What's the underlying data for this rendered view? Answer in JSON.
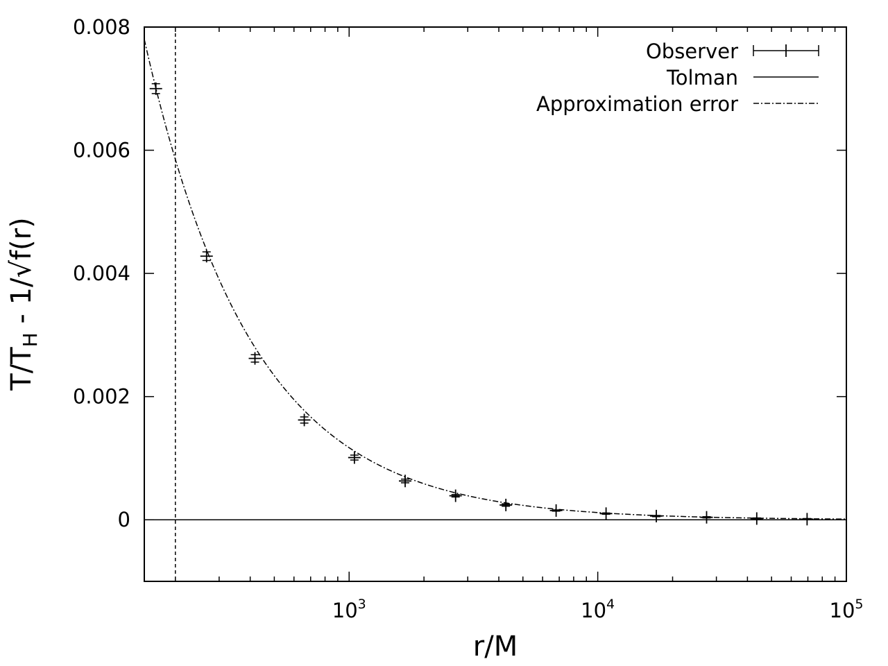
{
  "chart_data": {
    "type": "scatter",
    "xlabel": "r/M",
    "ylabel": {
      "prefix": "T/T",
      "subscript": "H",
      "suffix": " - 1/√f(r)"
    },
    "xscale": "log",
    "xlim": [
      150,
      100000
    ],
    "ylim": [
      -0.001,
      0.008
    ],
    "x_ticks": [
      {
        "value": 1000,
        "base": "10",
        "exp": "3"
      },
      {
        "value": 10000,
        "base": "10",
        "exp": "4"
      },
      {
        "value": 100000,
        "base": "10",
        "exp": "5"
      }
    ],
    "y_ticks": [
      {
        "value": 0,
        "label": "0"
      },
      {
        "value": 0.002,
        "label": "0.002"
      },
      {
        "value": 0.004,
        "label": "0.004"
      },
      {
        "value": 0.006,
        "label": "0.006"
      },
      {
        "value": 0.008,
        "label": "0.008"
      }
    ],
    "legend_position": "top-right",
    "vertical_reference_line": {
      "x": 200,
      "style": "dashed"
    },
    "series": [
      {
        "name": "Observer",
        "style": "points-with-errorbars",
        "points": [
          {
            "x": 167,
            "y": 0.007,
            "yerr": 8e-05
          },
          {
            "x": 267,
            "y": 0.00428,
            "yerr": 7e-05
          },
          {
            "x": 418,
            "y": 0.00262,
            "yerr": 6e-05
          },
          {
            "x": 660,
            "y": 0.00162,
            "yerr": 5e-05
          },
          {
            "x": 1050,
            "y": 0.00101,
            "yerr": 4e-05
          },
          {
            "x": 1680,
            "y": 0.00063,
            "yerr": 3e-05
          },
          {
            "x": 2680,
            "y": 0.00039,
            "yerr": 2e-05
          },
          {
            "x": 4270,
            "y": 0.00024,
            "yerr": 2e-05
          },
          {
            "x": 6800,
            "y": 0.00015,
            "yerr": 1e-05
          },
          {
            "x": 10800,
            "y": 0.0001,
            "yerr": 1e-05
          },
          {
            "x": 17200,
            "y": 6e-05,
            "yerr": 1e-05
          },
          {
            "x": 27400,
            "y": 4e-05,
            "yerr": 1e-05
          },
          {
            "x": 43600,
            "y": 2e-05,
            "yerr": 1e-05
          },
          {
            "x": 69500,
            "y": 1e-05,
            "yerr": 1e-05
          }
        ]
      },
      {
        "name": "Tolman",
        "style": "solid-line",
        "y_constant": 0
      },
      {
        "name": "Approximation error",
        "style": "dash-dot-line",
        "function": "1.17 / r"
      }
    ]
  }
}
